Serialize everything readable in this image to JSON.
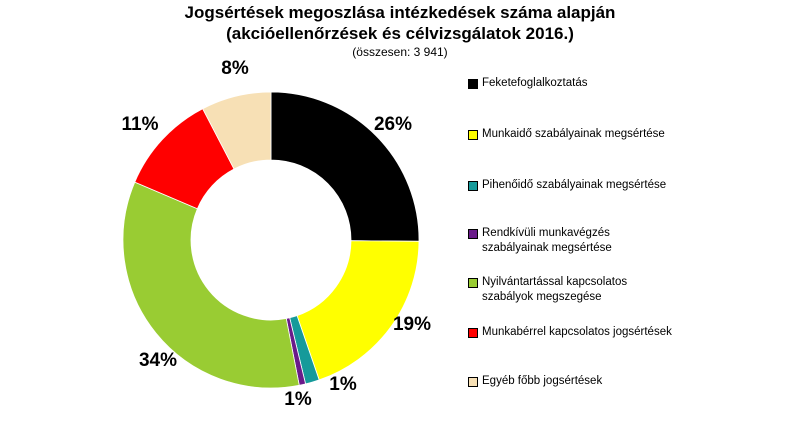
{
  "chart_data": {
    "type": "pie",
    "style": "donut",
    "title": "Jogsértések megoszlása intézkedések száma alapján (akcióellenőrzések és célvizsgálatok 2016.)",
    "title_lines": [
      "Jogsértések megoszlása intézkedések száma alapján",
      "(akcióellenőrzések és célvizsgálatok 2016.)"
    ],
    "subtitle": "(összesen: 3 941)",
    "legend_position": "right",
    "categories": [
      "Feketefoglalkoztatás",
      "Munkaidő szabályainak megsértése",
      "Pihenőidő szabályainak megsértése",
      "Rendkívüli munkavégzés szabályainak megsértése",
      "Nyilvántartással kapcsolatos szabályok megszegése",
      "Munkabérrel kapcsolatos jogsértések",
      "Egyéb főbb jogsértések"
    ],
    "legend_lines": [
      [
        "Feketefoglalkoztatás"
      ],
      [
        "Munkaidő szabályainak megsértése"
      ],
      [
        "Pihenőidő szabályainak megsértése"
      ],
      [
        "Rendkívüli munkavégzés",
        "szabályainak megsértése"
      ],
      [
        "Nyilvántartással kapcsolatos",
        "szabályok megszegése"
      ],
      [
        "Munkabérrel kapcsolatos jogsértések"
      ],
      [
        "Egyéb főbb jogsértések"
      ]
    ],
    "values": [
      26,
      19,
      1,
      1,
      34,
      11,
      8
    ],
    "value_labels": [
      "26%",
      "19%",
      "1%",
      "1%",
      "34%",
      "11%",
      "8%"
    ],
    "slice_angles_deg": [
      90.5,
      70.5,
      5.5,
      2.5,
      124,
      39.5,
      27.5
    ],
    "colors": [
      "#000000",
      "#ffff00",
      "#169a9a",
      "#6a1b8a",
      "#99cc33",
      "#ff0000",
      "#f7e0b5"
    ]
  }
}
